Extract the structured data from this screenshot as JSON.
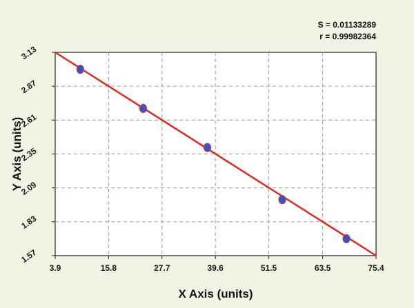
{
  "chart_data": {
    "type": "scatter",
    "xlabel": "X Axis (units)",
    "ylabel": "Y Axis (units)",
    "xlim": [
      3.9,
      75.4
    ],
    "ylim": [
      1.57,
      3.13
    ],
    "x_ticks": [
      "3.9",
      "15.8",
      "27.7",
      "39.6",
      "51.5",
      "63.5",
      "75.4"
    ],
    "y_ticks": [
      "1.57",
      "1.83",
      "2.09",
      "2.35",
      "2.61",
      "2.87",
      "3.13"
    ],
    "grid": true,
    "annotations": [
      "S = 0.01133289",
      "r = 0.99982364"
    ],
    "series": [
      {
        "points": [
          {
            "x": 9.5,
            "y": 3.0
          },
          {
            "x": 23.5,
            "y": 2.7
          },
          {
            "x": 37.8,
            "y": 2.4
          },
          {
            "x": 54.5,
            "y": 2.0
          },
          {
            "x": 68.8,
            "y": 1.7
          }
        ],
        "marker_color": "#3355cc"
      }
    ],
    "fit_line": {
      "points": [
        {
          "x": 3.9,
          "y": 3.13
        },
        {
          "x": 75.4,
          "y": 1.57
        }
      ],
      "color": "#e0281e"
    }
  }
}
